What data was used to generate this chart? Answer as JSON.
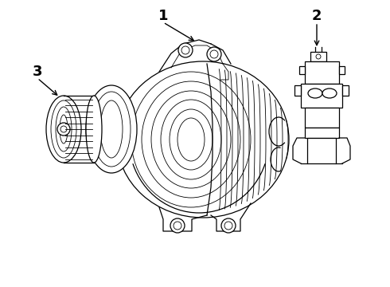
{
  "background_color": "#ffffff",
  "line_color": "#000000",
  "label_1": "1",
  "label_2": "2",
  "label_3": "3",
  "figsize": [
    4.9,
    3.6
  ],
  "dpi": 100
}
